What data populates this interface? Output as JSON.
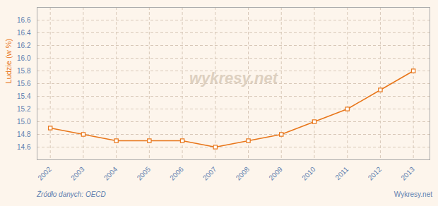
{
  "chart_data": {
    "type": "line",
    "x": [
      2002,
      2003,
      2004,
      2005,
      2006,
      2007,
      2008,
      2009,
      2010,
      2011,
      2012,
      2013
    ],
    "values": [
      14.9,
      14.8,
      14.7,
      14.7,
      14.7,
      14.6,
      14.7,
      14.8,
      15.0,
      15.2,
      15.5,
      15.8
    ],
    "color": "#E8761A",
    "marker": "square",
    "ylabel": "Ludzie (w %)",
    "xlim": [
      2001.6,
      2013.5
    ],
    "xticks": [
      2002,
      2003,
      2004,
      2005,
      2006,
      2007,
      2008,
      2009,
      2010,
      2011,
      2012,
      2013
    ],
    "ylim": [
      14.4,
      16.8
    ],
    "yticks": [
      14.6,
      14.8,
      {
        "value": 15.0,
        "label": "15.0"
      },
      15.2,
      15.4,
      15.6,
      15.8,
      {
        "value": 16.0,
        "label": "16.0"
      },
      16.2,
      16.4,
      16.6
    ],
    "grid": true,
    "annotations": [
      "wykresy.net"
    ],
    "source": "Źródło danych:  OECD",
    "footer": "Wykresy.net"
  }
}
